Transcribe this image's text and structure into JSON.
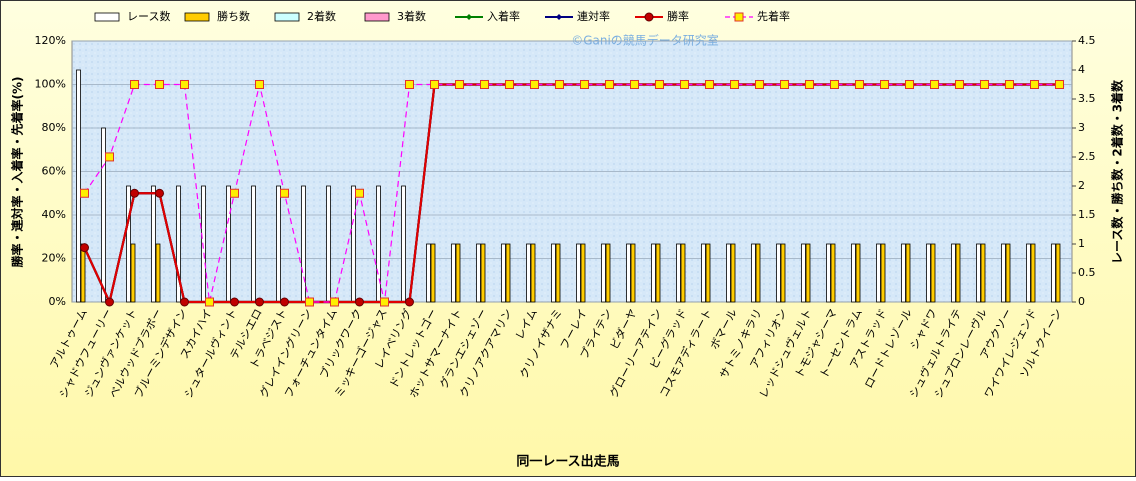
{
  "chart_data": {
    "type": "bar",
    "watermark": "©Ganiの競馬データ研究室",
    "x_label": "同一レース出走馬",
    "y_label": "勝率・連対率・入着率・先着率(%)",
    "y2_label": "レース数・勝ち数・2着数・3着数",
    "categories": [
      "アルトゥーム",
      "シャドウフューリー",
      "ジュンヴァンケット",
      "ベルウッドブラボー",
      "ブルーミンデザイン",
      "スカイハイ",
      "シュタールヴィント",
      "テルシエロ",
      "トラベジスト",
      "グレイイングリーン",
      "フォーチュンタイム",
      "ブリックワーク",
      "ミッキーゴージャス",
      "レイベリング",
      "ドントレットゴー",
      "ホットサマーナイト",
      "グランエシェゾー",
      "クリノアクアマリン",
      "レイム",
      "クリノイザナミ",
      "フーレイ",
      "プライテン",
      "ビダーヤ",
      "グローリーアテイン",
      "ビーグラッド",
      "コスモアディラート",
      "ボマール",
      "サトミノキラリ",
      "アフィリオン",
      "レッドシュヴェルト",
      "トモジャシーマ",
      "トーセントラム",
      "アストラッド",
      "ロードトレゾール",
      "シャドワ",
      "シュヴェルトライテ",
      "シュプロンレーヴル",
      "アウクソー",
      "ワイワイレジェンド",
      "ソルトクイーン"
    ],
    "ylim": [
      0,
      120
    ],
    "yticks": [
      {
        "value": 0,
        "label": "0%"
      },
      {
        "value": 20,
        "label": "20%"
      },
      {
        "value": 40,
        "label": "40%"
      },
      {
        "value": 60,
        "label": "60%"
      },
      {
        "value": 80,
        "label": "80%"
      },
      {
        "value": 100,
        "label": "100%"
      },
      {
        "value": 120,
        "label": "120%"
      }
    ],
    "y2lim": [
      0,
      4.5
    ],
    "y2ticks": [
      0,
      0.5,
      1,
      1.5,
      2,
      2.5,
      3,
      3.5,
      4,
      4.5
    ],
    "grid": true,
    "series": [
      {
        "name": "レース数",
        "type": "bar",
        "axis": "y2",
        "color": "#ffffff",
        "values": [
          4,
          3,
          2,
          2,
          2,
          2,
          2,
          2,
          2,
          2,
          2,
          2,
          2,
          2,
          1,
          1,
          1,
          1,
          1,
          1,
          1,
          1,
          1,
          1,
          1,
          1,
          1,
          1,
          1,
          1,
          1,
          1,
          1,
          1,
          1,
          1,
          1,
          1,
          1,
          1
        ]
      },
      {
        "name": "勝ち数",
        "type": "bar",
        "axis": "y2",
        "color": "#ffcc00",
        "values": [
          1,
          0,
          1,
          1,
          0,
          0,
          0,
          0,
          0,
          0,
          0,
          0,
          0,
          0,
          1,
          1,
          1,
          1,
          1,
          1,
          1,
          1,
          1,
          1,
          1,
          1,
          1,
          1,
          1,
          1,
          1,
          1,
          1,
          1,
          1,
          1,
          1,
          1,
          1,
          1
        ]
      },
      {
        "name": "2着数",
        "type": "bar",
        "axis": "y2",
        "color": "#ccffff",
        "values": [
          0,
          0,
          0,
          0,
          0,
          0,
          0,
          0,
          0,
          0,
          0,
          0,
          0,
          0,
          0,
          0,
          0,
          0,
          0,
          0,
          0,
          0,
          0,
          0,
          0,
          0,
          0,
          0,
          0,
          0,
          0,
          0,
          0,
          0,
          0,
          0,
          0,
          0,
          0,
          0
        ]
      },
      {
        "name": "3着数",
        "type": "bar",
        "axis": "y2",
        "color": "#ff99cc",
        "values": [
          0,
          0,
          0,
          0,
          0,
          0,
          0,
          0,
          0,
          0,
          0,
          0,
          0,
          0,
          0,
          0,
          0,
          0,
          0,
          0,
          0,
          0,
          0,
          0,
          0,
          0,
          0,
          0,
          0,
          0,
          0,
          0,
          0,
          0,
          0,
          0,
          0,
          0,
          0,
          0
        ]
      },
      {
        "name": "入着率",
        "type": "line",
        "color": "#008000",
        "marker": "diamond",
        "values": [
          25,
          0,
          50,
          50,
          0,
          0,
          0,
          0,
          0,
          0,
          0,
          0,
          0,
          0,
          100,
          100,
          100,
          100,
          100,
          100,
          100,
          100,
          100,
          100,
          100,
          100,
          100,
          100,
          100,
          100,
          100,
          100,
          100,
          100,
          100,
          100,
          100,
          100,
          100,
          100
        ]
      },
      {
        "name": "連対率",
        "type": "line",
        "color": "#000080",
        "marker": "diamond",
        "values": [
          25,
          0,
          50,
          50,
          0,
          0,
          0,
          0,
          0,
          0,
          0,
          0,
          0,
          0,
          100,
          100,
          100,
          100,
          100,
          100,
          100,
          100,
          100,
          100,
          100,
          100,
          100,
          100,
          100,
          100,
          100,
          100,
          100,
          100,
          100,
          100,
          100,
          100,
          100,
          100
        ]
      },
      {
        "name": "勝率",
        "type": "line",
        "color": "#e00000",
        "marker": "circle",
        "values": [
          25,
          0,
          50,
          50,
          0,
          0,
          0,
          0,
          0,
          0,
          0,
          0,
          0,
          0,
          100,
          100,
          100,
          100,
          100,
          100,
          100,
          100,
          100,
          100,
          100,
          100,
          100,
          100,
          100,
          100,
          100,
          100,
          100,
          100,
          100,
          100,
          100,
          100,
          100,
          100
        ]
      },
      {
        "name": "先着率",
        "type": "line",
        "color": "#ff00ff",
        "marker": "square",
        "dash": true,
        "values": [
          50,
          66.7,
          100,
          100,
          100,
          0,
          50,
          100,
          50,
          0,
          0,
          50,
          0,
          100,
          100,
          100,
          100,
          100,
          100,
          100,
          100,
          100,
          100,
          100,
          100,
          100,
          100,
          100,
          100,
          100,
          100,
          100,
          100,
          100,
          100,
          100,
          100,
          100,
          100,
          100
        ]
      }
    ]
  }
}
